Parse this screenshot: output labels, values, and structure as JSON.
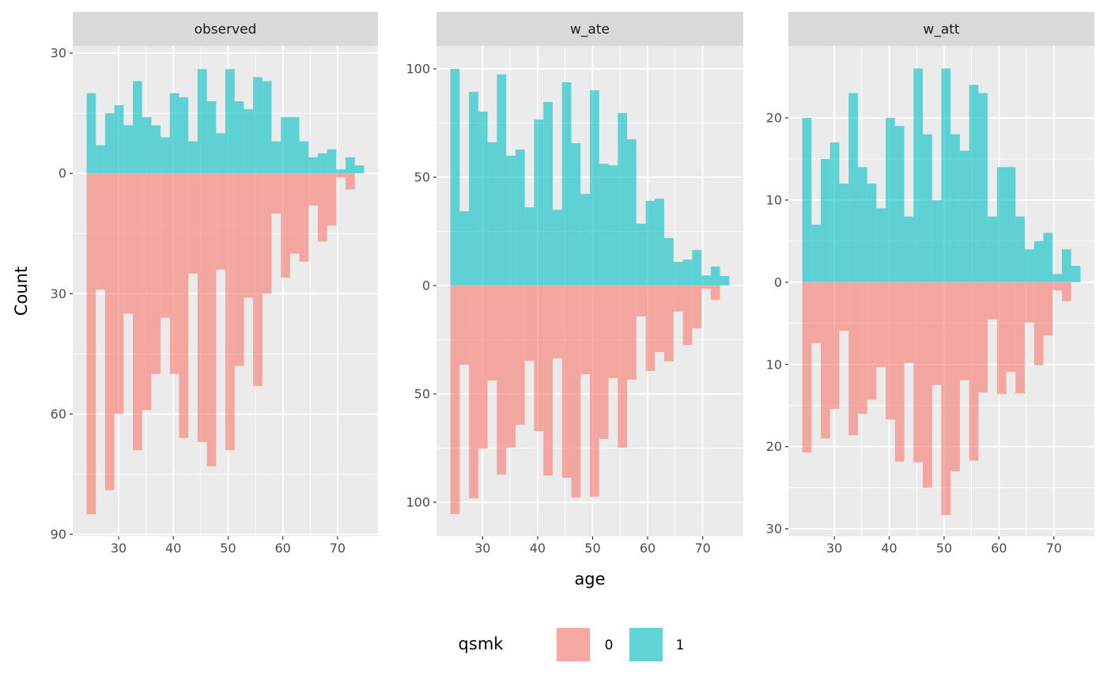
{
  "chart_data": {
    "type": "histogram",
    "xlabel": "age",
    "ylabel": "Count",
    "legend_title": "qsmk",
    "alpha": 0.6,
    "series": [
      {
        "name": "0",
        "color": "#F8766D"
      },
      {
        "name": "1",
        "color": "#00BFC4"
      }
    ],
    "bins": [
      24.155,
      25.845,
      27.534,
      29.224,
      30.914,
      32.603,
      34.293,
      35.983,
      37.672,
      39.362,
      41.052,
      42.741,
      44.431,
      46.121,
      47.81,
      49.5,
      51.19,
      52.879,
      54.569,
      56.259,
      57.948,
      59.638,
      61.328,
      63.017,
      64.707,
      66.397,
      68.086,
      69.776,
      71.466,
      73.155,
      74.845
    ],
    "xlim": [
      21.62,
      77.38
    ],
    "xticks": [
      30,
      40,
      50,
      60,
      70
    ],
    "grid": true,
    "facets": [
      {
        "title": "observed",
        "ylim": [
          -90.5,
          31.8
        ],
        "yticks": [
          30,
          0,
          {
            "value": -30,
            "label": "30"
          },
          {
            "value": -60,
            "label": "60"
          },
          {
            "value": -90,
            "label": "90"
          }
        ],
        "values": [
          [
            -85,
            -29,
            -79,
            -60,
            -35,
            -69,
            -59,
            -50,
            -36,
            -50,
            -66,
            -25,
            -67,
            -73,
            -24,
            -69,
            -48,
            -31,
            -53,
            -30,
            -10,
            -26,
            -20,
            -22,
            -8,
            -17,
            -13,
            -1,
            -4,
            0
          ],
          [
            20,
            7,
            15,
            17,
            12,
            23,
            14,
            12,
            9,
            20,
            19,
            8,
            26,
            18,
            10,
            26,
            18,
            16,
            24,
            23,
            8,
            14,
            14,
            8,
            4,
            5,
            6,
            1,
            4,
            2
          ]
        ]
      },
      {
        "title": "w_ate",
        "ylim": [
          -115.7,
          110.6
        ],
        "yticks": [
          100,
          50,
          0,
          {
            "value": -50,
            "label": "50"
          },
          {
            "value": -100,
            "label": "100"
          }
        ],
        "values": [
          [
            -105.5,
            -36.5,
            -98.2,
            -75.2,
            -43.8,
            -87.2,
            -74.8,
            -64.2,
            -34.7,
            -67.2,
            -87.6,
            -33.6,
            -88.7,
            -97.8,
            -40.9,
            -97.4,
            -70.8,
            -42.7,
            -74.8,
            -43.4,
            -14.2,
            -39.4,
            -30.7,
            -35,
            -12,
            -27.4,
            -19.7,
            -1.5,
            -6.6,
            0
          ],
          [
            100,
            34.3,
            89.4,
            80.3,
            66.1,
            97.4,
            59.9,
            62.8,
            36.1,
            76.6,
            84.7,
            35,
            93.8,
            65.7,
            42.3,
            90.1,
            56.2,
            55.5,
            79.6,
            67.5,
            28.5,
            39.1,
            40.1,
            21.9,
            10.9,
            12,
            16.4,
            4.7,
            8.8,
            4.4
          ]
        ]
      },
      {
        "title": "w_att",
        "ylim": [
          -30.9,
          28.75
        ],
        "yticks": [
          20,
          10,
          0,
          {
            "value": -10,
            "label": "10"
          },
          {
            "value": -20,
            "label": "20"
          },
          {
            "value": -30,
            "label": "30"
          }
        ],
        "values": [
          [
            -20.7,
            -7.4,
            -19,
            -15.4,
            -5.9,
            -18.6,
            -16,
            -14.3,
            -10.3,
            -16.7,
            -21.8,
            -9.8,
            -21.9,
            -25,
            -12.5,
            -28.3,
            -23,
            -11.9,
            -21.7,
            -13.4,
            -4.5,
            -13.6,
            -10.9,
            -13.5,
            -4.9,
            -10.1,
            -6.5,
            -1,
            -2.3,
            0
          ],
          [
            20,
            7,
            15,
            17,
            12,
            23,
            14,
            12,
            9,
            20,
            19,
            8,
            26,
            18,
            10,
            26,
            18,
            16,
            24,
            23,
            8,
            14,
            14,
            8,
            4,
            5,
            6,
            1,
            4,
            2
          ]
        ]
      }
    ]
  }
}
